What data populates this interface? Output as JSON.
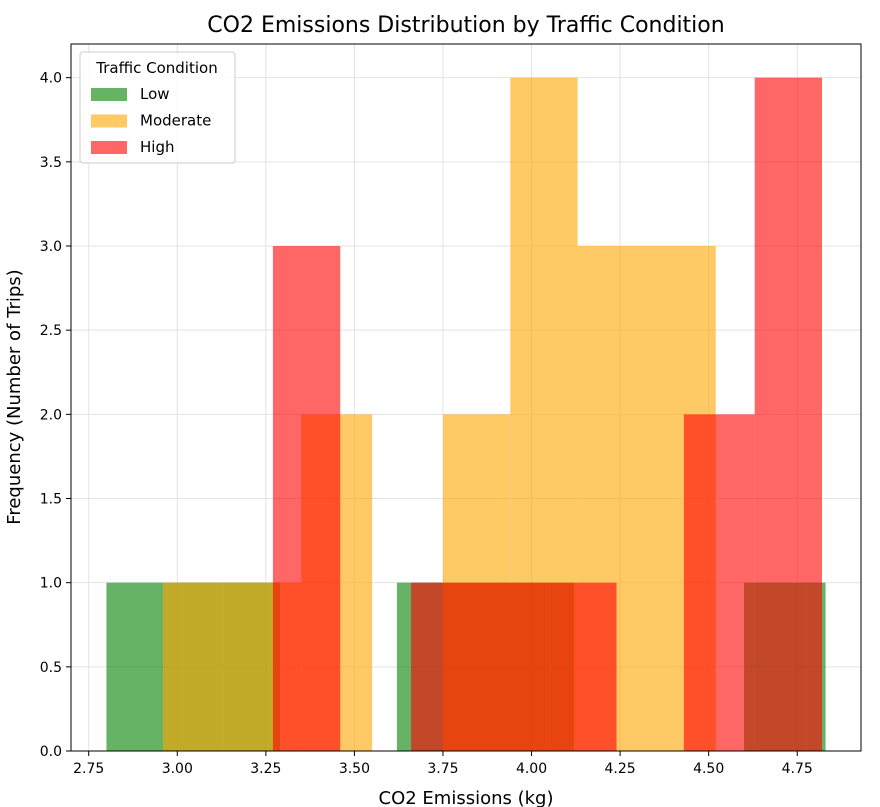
{
  "chart_data": {
    "type": "bar",
    "subtype": "histogram",
    "title": "CO2 Emissions Distribution by Traffic Condition",
    "xlabel": "CO2 Emissions (kg)",
    "ylabel": "Frequency (Number of Trips)",
    "xlim": [
      2.7,
      4.93
    ],
    "ylim": [
      0,
      4.2
    ],
    "xticks": [
      "2.75",
      "3.00",
      "3.25",
      "3.50",
      "3.75",
      "4.00",
      "4.25",
      "4.50",
      "4.75"
    ],
    "yticks": [
      "0.0",
      "0.5",
      "1.0",
      "1.5",
      "2.0",
      "2.5",
      "3.0",
      "3.5",
      "4.0"
    ],
    "grid": true,
    "legend_title": "Traffic Condition",
    "legend_position": "top-left",
    "series": [
      {
        "name": "Low",
        "color": "#008000",
        "opacity": 0.6,
        "bins": [
          {
            "x0": 2.8,
            "x1": 2.96,
            "y": 1
          },
          {
            "x0": 2.96,
            "x1": 3.13,
            "y": 1
          },
          {
            "x0": 3.13,
            "x1": 3.29,
            "y": 1
          },
          {
            "x0": 3.62,
            "x1": 3.79,
            "y": 1
          },
          {
            "x0": 3.79,
            "x1": 3.95,
            "y": 1
          },
          {
            "x0": 3.95,
            "x1": 4.12,
            "y": 1
          },
          {
            "x0": 4.6,
            "x1": 4.78,
            "y": 1
          },
          {
            "x0": 4.78,
            "x1": 4.83,
            "y": 1
          }
        ]
      },
      {
        "name": "Moderate",
        "color": "#FFA500",
        "opacity": 0.6,
        "bins": [
          {
            "x0": 2.96,
            "x1": 3.16,
            "y": 1
          },
          {
            "x0": 3.16,
            "x1": 3.35,
            "y": 1
          },
          {
            "x0": 3.35,
            "x1": 3.55,
            "y": 2
          },
          {
            "x0": 3.75,
            "x1": 3.94,
            "y": 2
          },
          {
            "x0": 3.94,
            "x1": 4.13,
            "y": 4
          },
          {
            "x0": 4.13,
            "x1": 4.33,
            "y": 3
          },
          {
            "x0": 4.33,
            "x1": 4.52,
            "y": 3
          }
        ]
      },
      {
        "name": "High",
        "color": "#FF0000",
        "opacity": 0.6,
        "bins": [
          {
            "x0": 3.27,
            "x1": 3.46,
            "y": 3
          },
          {
            "x0": 3.66,
            "x1": 3.86,
            "y": 1
          },
          {
            "x0": 3.86,
            "x1": 4.05,
            "y": 1
          },
          {
            "x0": 4.05,
            "x1": 4.24,
            "y": 1
          },
          {
            "x0": 4.43,
            "x1": 4.63,
            "y": 2
          },
          {
            "x0": 4.63,
            "x1": 4.82,
            "y": 4
          }
        ]
      }
    ]
  }
}
